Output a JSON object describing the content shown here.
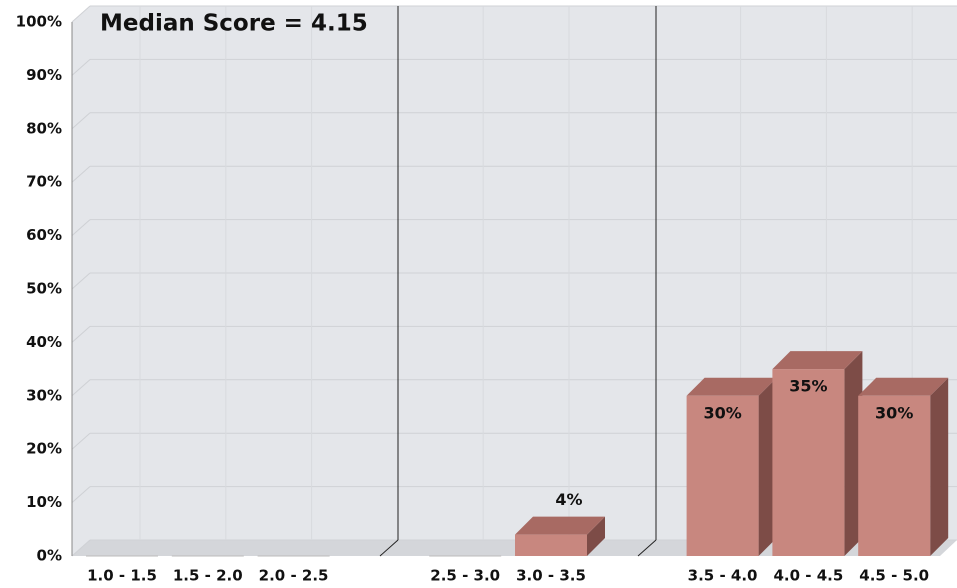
{
  "chart_data": {
    "type": "bar3d",
    "annotation": "Median Score = 4.15",
    "categories": [
      "1.0 - 1.5",
      "1.5 - 2.0",
      "2.0 - 2.5",
      "2.5 - 3.0",
      "3.0 - 3.5",
      "3.5 - 4.0",
      "4.0 - 4.5",
      "4.5 - 5.0"
    ],
    "values": [
      0,
      0,
      0,
      0,
      4,
      30,
      35,
      30
    ],
    "value_labels": [
      null,
      null,
      null,
      null,
      "4%",
      "30%",
      "35%",
      "30%"
    ],
    "color": "#c8877f",
    "ylim": [
      0,
      100
    ],
    "yticks": [
      {
        "value": 0,
        "label": "0%"
      },
      {
        "value": 10,
        "label": "10%"
      },
      {
        "value": 20,
        "label": "20%"
      },
      {
        "value": 30,
        "label": "30%"
      },
      {
        "value": 40,
        "label": "40%"
      },
      {
        "value": 50,
        "label": "50%"
      },
      {
        "value": 60,
        "label": "60%"
      },
      {
        "value": 70,
        "label": "70%"
      },
      {
        "value": 80,
        "label": "80%"
      },
      {
        "value": 90,
        "label": "90%"
      },
      {
        "value": 100,
        "label": "100%"
      }
    ],
    "grid": true
  }
}
